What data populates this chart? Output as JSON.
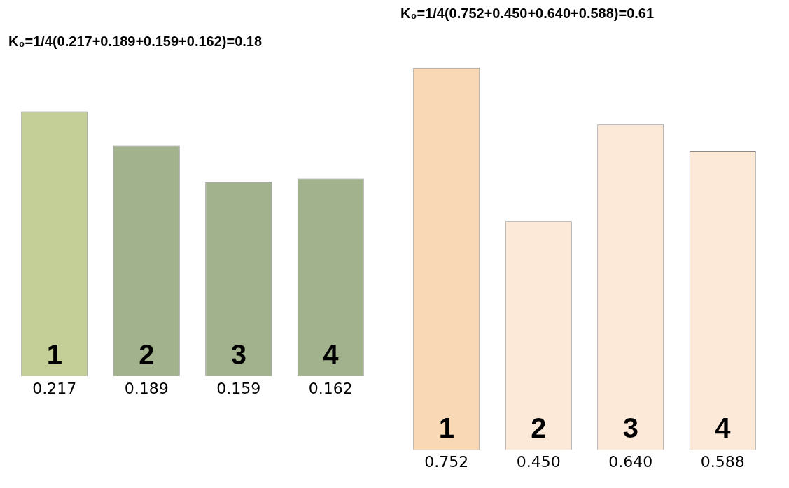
{
  "chart_data": [
    {
      "type": "bar",
      "title": "K₀=1/4(0.217+0.189+0.159+0.162)=0.18",
      "categories": [
        "1",
        "2",
        "3",
        "4"
      ],
      "values": [
        0.217,
        0.189,
        0.159,
        0.162
      ],
      "value_labels": [
        "0.217",
        "0.189",
        "0.159",
        "0.162"
      ],
      "colors": [
        "#c3cf97",
        "#a2b28c",
        "#a2b28c",
        "#a2b28c"
      ]
    },
    {
      "type": "bar",
      "title": "K₀=1/4(0.752+0.450+0.640+0.588)=0.61",
      "categories": [
        "1",
        "2",
        "3",
        "4"
      ],
      "values": [
        0.752,
        0.45,
        0.64,
        0.588
      ],
      "value_labels": [
        "0.752",
        "0.450",
        "0.640",
        "0.588"
      ],
      "colors": [
        "#f8d8b5",
        "#fde9d8",
        "#fde9d8",
        "#fde9d8"
      ]
    }
  ]
}
